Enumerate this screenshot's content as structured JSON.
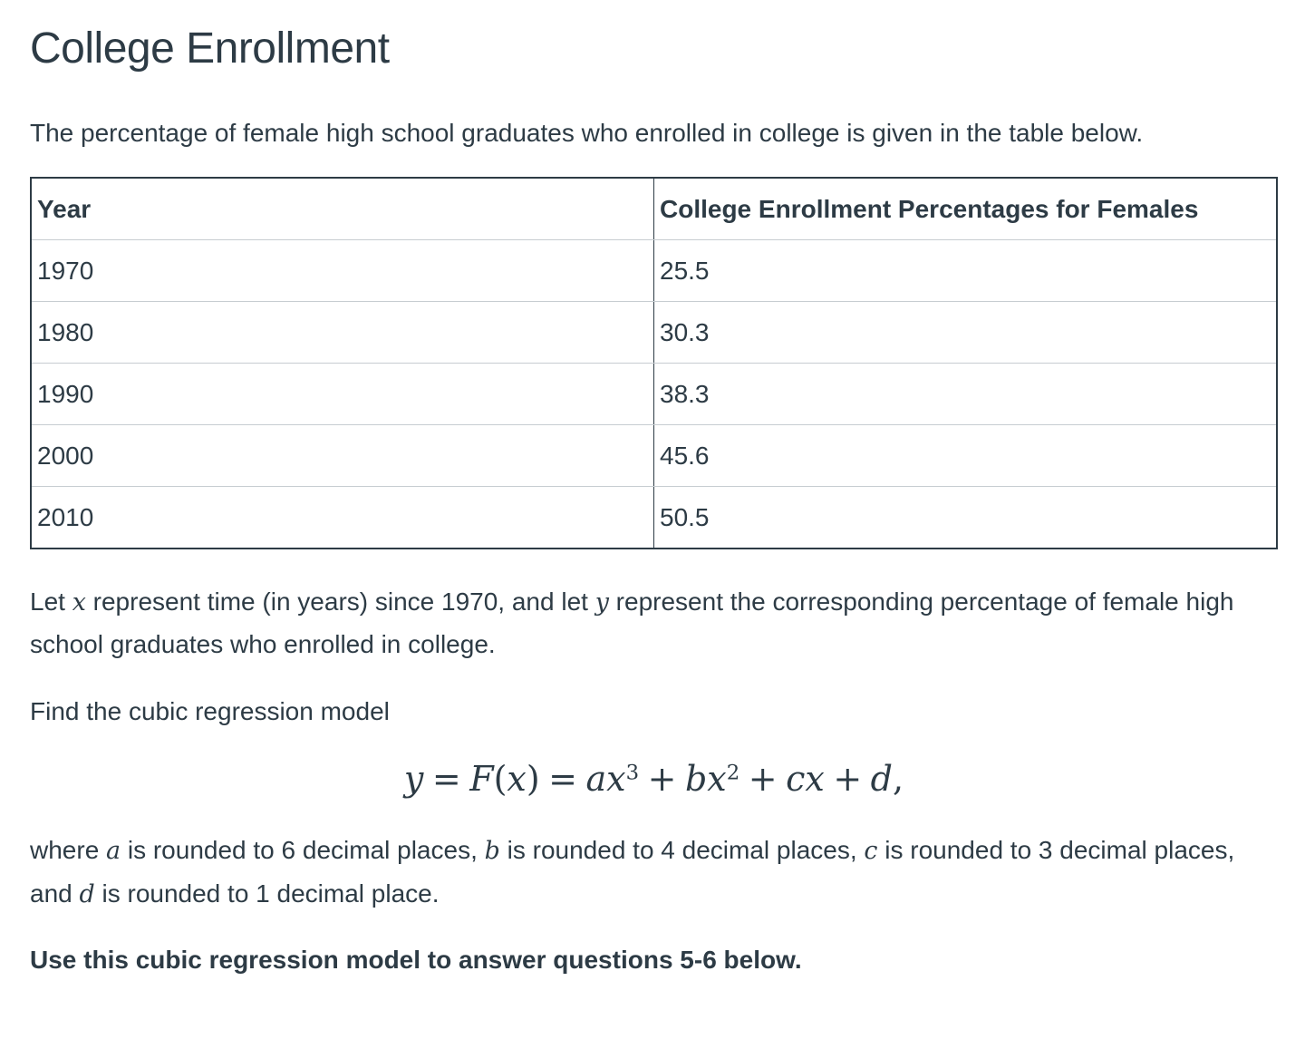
{
  "colors": {
    "text": "#2d3b45",
    "table_outer_border": "#2d3b45",
    "table_row_divider": "#c7cdd1",
    "background": "#ffffff"
  },
  "header": {
    "title": "College Enrollment"
  },
  "intro": "The percentage of female high school graduates who enrolled in college is given in the table below.",
  "table": {
    "columns": [
      "Year",
      "College Enrollment Percentages for Females"
    ],
    "rows": [
      {
        "year": "1970",
        "value": "25.5"
      },
      {
        "year": "1980",
        "value": "30.3"
      },
      {
        "year": "1990",
        "value": "38.3"
      },
      {
        "year": "2000",
        "value": "45.6"
      },
      {
        "year": "2010",
        "value": "50.5"
      }
    ]
  },
  "define_paragraph": {
    "t1": "Let ",
    "m1": "x",
    "t2": " represent time (in years) since 1970, and let ",
    "m2": "y",
    "t3": " represent the corresponding percentage of female high school graduates who enrolled in college."
  },
  "find_text": "Find the cubic regression model",
  "equation": {
    "y": "y",
    "equals1": "=",
    "F": "F",
    "lparen": "(",
    "x1": "x",
    "rparen": ")",
    "equals2": "=",
    "a": "a",
    "x2": "x",
    "exp3": "3",
    "plus1": "+",
    "b": "b",
    "x3": "x",
    "exp2": "2",
    "plus2": "+",
    "c": "c",
    "x4": "x",
    "plus3": "+",
    "d": "d",
    "comma": ","
  },
  "rounding_paragraph": {
    "t1": "where ",
    "m1": "a",
    "t2": " is rounded to 6 decimal places, ",
    "m2": "b",
    "t3": " is rounded to 4 decimal places, ",
    "m3": "c",
    "t4": " is rounded to 3 decimal places, and ",
    "m4": "d",
    "t5": " is rounded to 1 decimal place."
  },
  "closing_bold": "Use this cubic regression model to answer questions 5-6 below."
}
